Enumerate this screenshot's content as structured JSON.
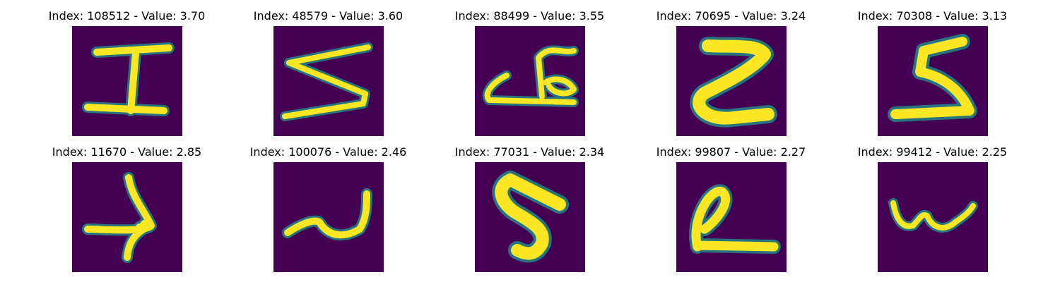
{
  "figure": {
    "grid": {
      "rows": 2,
      "cols": 5
    },
    "colors": {
      "background": "#440154",
      "stroke_core": "#fde725",
      "stroke_edge": "#35b779",
      "stroke_halo": "#21918c"
    },
    "panels": [
      {
        "title": "Index: 108512 - Value: 3.70",
        "index": 108512,
        "value": 3.7
      },
      {
        "title": "Index: 48579 - Value: 3.60",
        "index": 48579,
        "value": 3.6
      },
      {
        "title": "Index: 88499 - Value: 3.55",
        "index": 88499,
        "value": 3.55
      },
      {
        "title": "Index: 70695 - Value: 3.24",
        "index": 70695,
        "value": 3.24
      },
      {
        "title": "Index: 70308 - Value: 3.13",
        "index": 70308,
        "value": 3.13
      },
      {
        "title": "Index: 11670 - Value: 2.85",
        "index": 11670,
        "value": 2.85
      },
      {
        "title": "Index: 100076 - Value: 2.46",
        "index": 100076,
        "value": 2.46
      },
      {
        "title": "Index: 77031 - Value: 2.34",
        "index": 77031,
        "value": 2.34
      },
      {
        "title": "Index: 99807 - Value: 2.27",
        "index": 99807,
        "value": 2.27
      },
      {
        "title": "Index: 99412 - Value: 2.25",
        "index": 99412,
        "value": 2.25
      }
    ]
  }
}
